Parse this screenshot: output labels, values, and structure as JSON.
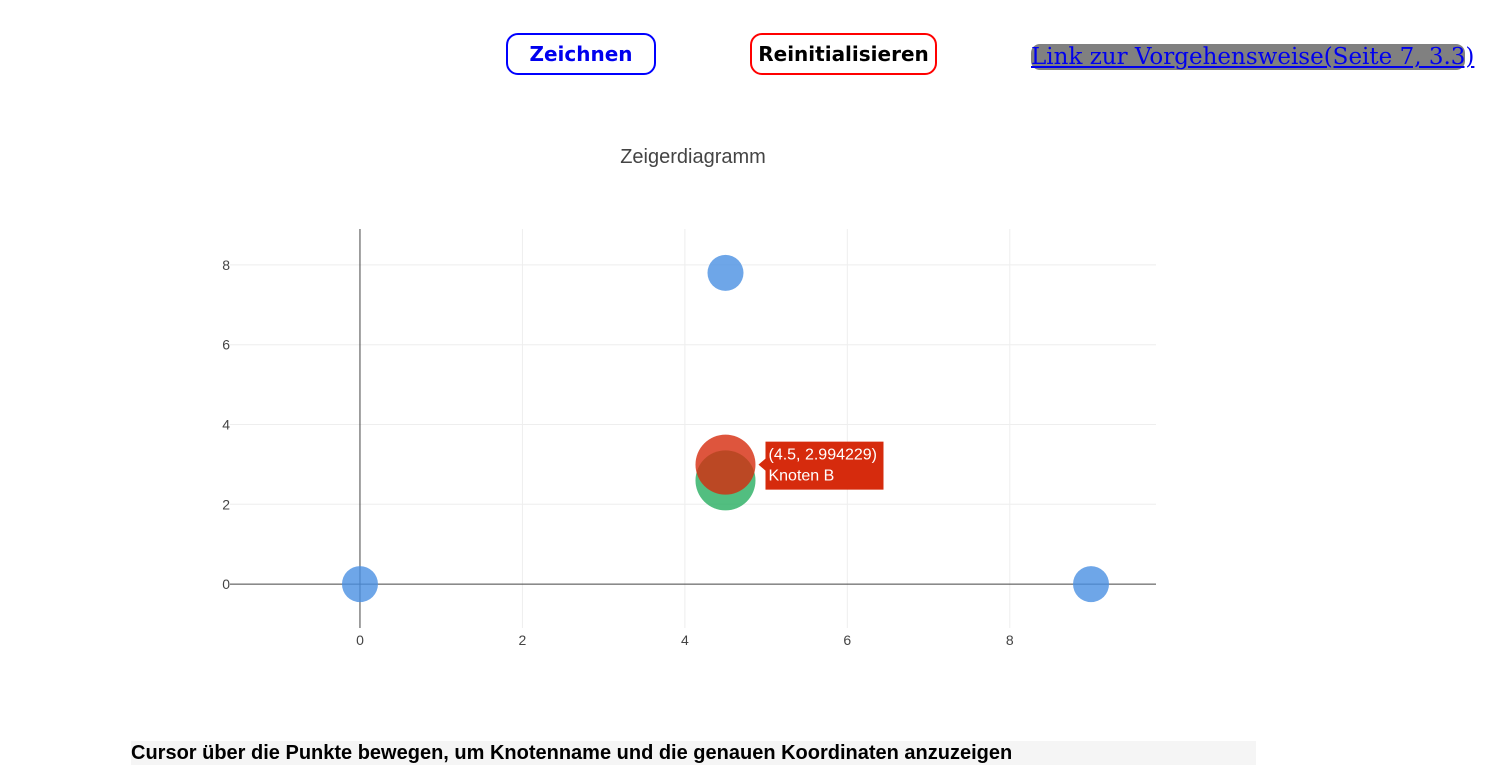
{
  "toolbar": {
    "draw_label": "Zeichnen",
    "reset_label": "Reinitialisieren",
    "link_label": "Link zur Vorgehensweise(Seite 7, 3.3)"
  },
  "chart_data": {
    "type": "scatter",
    "title": "Zeigerdiagramm",
    "xlabel": "",
    "ylabel": "",
    "xlim": [
      -1.6,
      9.8
    ],
    "ylim": [
      -1.1,
      8.9
    ],
    "x_ticks": [
      0,
      2,
      4,
      6,
      8
    ],
    "y_ticks": [
      0,
      2,
      4,
      6,
      8
    ],
    "grid": true,
    "colors": {
      "blue": "#4a90e2",
      "green": "#27ae60",
      "red": "#d62b0d",
      "tooltip": "#d62b0d"
    },
    "series": [
      {
        "color": "#4a90e2",
        "points": [
          {
            "x": 0,
            "y": 0
          },
          {
            "x": 9,
            "y": 0
          },
          {
            "x": 4.5,
            "y": 7.8
          }
        ]
      },
      {
        "color": "#27ae60",
        "points": [
          {
            "x": 4.5,
            "y": 2.6
          }
        ]
      },
      {
        "color": "#d62b0d",
        "points": [
          {
            "x": 4.5,
            "y": 2.994229
          }
        ]
      }
    ],
    "hover": {
      "coords": "(4.5, 2.994229)",
      "name": "Knoten B"
    }
  },
  "footer": {
    "hint": "Cursor über die Punkte bewegen, um Knotenname und die genauen Koordinaten anzuzeigen"
  }
}
